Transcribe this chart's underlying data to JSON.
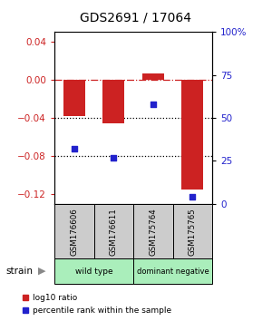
{
  "title": "GDS2691 / 17064",
  "samples": [
    "GSM176606",
    "GSM176611",
    "GSM175764",
    "GSM175765"
  ],
  "log10_ratio": [
    -0.038,
    -0.046,
    0.007,
    -0.115
  ],
  "percentile_rank": [
    0.32,
    0.27,
    0.58,
    0.04
  ],
  "bar_color": "#CC2222",
  "point_color": "#2222CC",
  "ylim_left": [
    -0.13,
    0.05
  ],
  "ylim_right": [
    0.0,
    1.0
  ],
  "yticks_left": [
    0.04,
    0.0,
    -0.04,
    -0.08,
    -0.12
  ],
  "yticks_right": [
    1.0,
    0.75,
    0.5,
    0.25,
    0.0
  ],
  "ytick_labels_right": [
    "100%",
    "75",
    "50",
    "25",
    "0"
  ],
  "hline_zero_color": "#CC2222",
  "dotted_line_color": "black",
  "bar_width": 0.55,
  "group_label": "strain",
  "wild_type_color": "#AAEEBB",
  "dominant_neg_color": "#AAEEBB",
  "sample_box_color": "#CCCCCC",
  "legend_items": [
    {
      "color": "#CC2222",
      "label": "log10 ratio"
    },
    {
      "color": "#2222CC",
      "label": "percentile rank within the sample"
    }
  ]
}
